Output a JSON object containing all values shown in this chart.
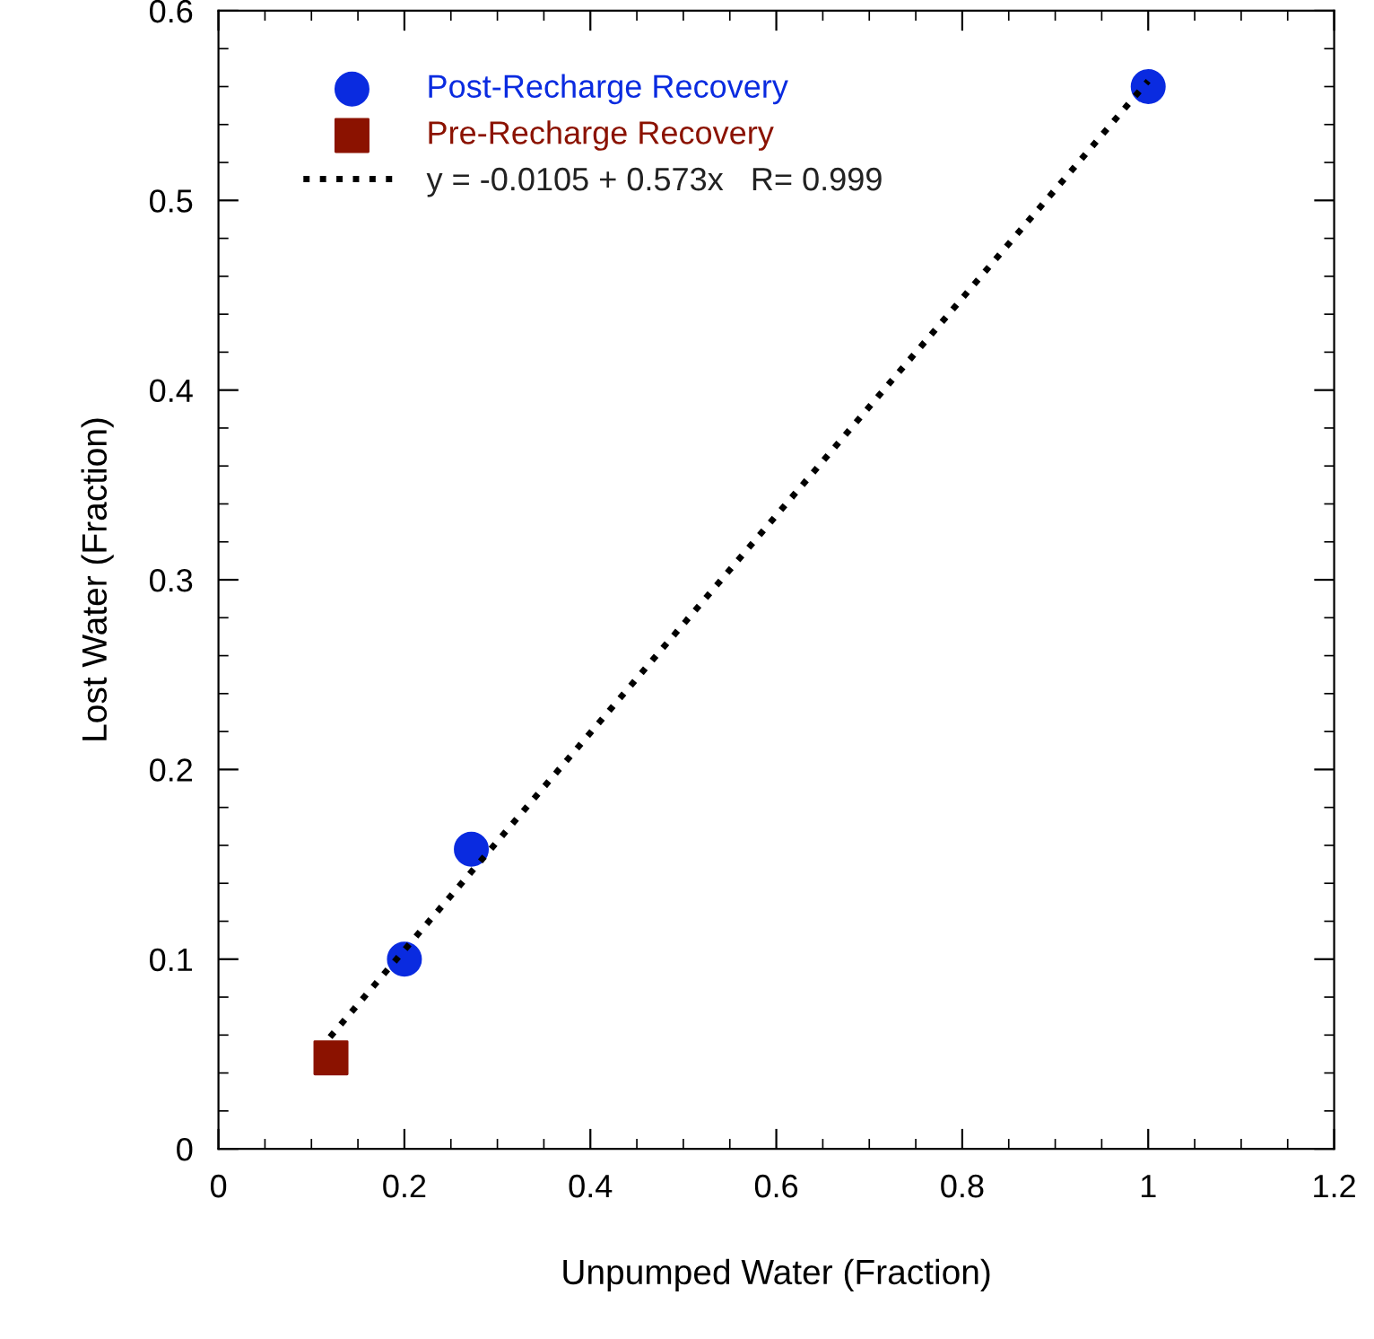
{
  "chart_data": {
    "type": "scatter",
    "xlabel": "Unpumped Water (Fraction)",
    "ylabel": "Lost Water (Fraction)",
    "xlim": [
      0,
      1.2
    ],
    "xticks": [
      0,
      0.2,
      0.4,
      0.6,
      0.8,
      1,
      1.2
    ],
    "ylim": [
      0,
      0.6
    ],
    "yticks": [
      0,
      0.1,
      0.2,
      0.3,
      0.4,
      0.5,
      0.6
    ],
    "grid": false,
    "legend": "top left",
    "series": [
      {
        "name": "Post-Recharge Recovery",
        "marker": "circle",
        "color": "#0a2be0",
        "x": [
          0.2,
          0.272,
          1.0
        ],
        "values": [
          0.1,
          0.158,
          0.56
        ]
      },
      {
        "name": "Pre-Recharge Recovery",
        "marker": "square",
        "color": "#8b1200",
        "x": [
          0.121
        ],
        "values": [
          0.048
        ]
      },
      {
        "name": "y = -0.0105 + 0.573x   R= 0.999",
        "type": "line",
        "line_style": "dotted",
        "marker": "none",
        "color": "#000000",
        "x": [
          0.12,
          1.0
        ],
        "values": [
          0.059,
          0.563
        ]
      }
    ]
  }
}
